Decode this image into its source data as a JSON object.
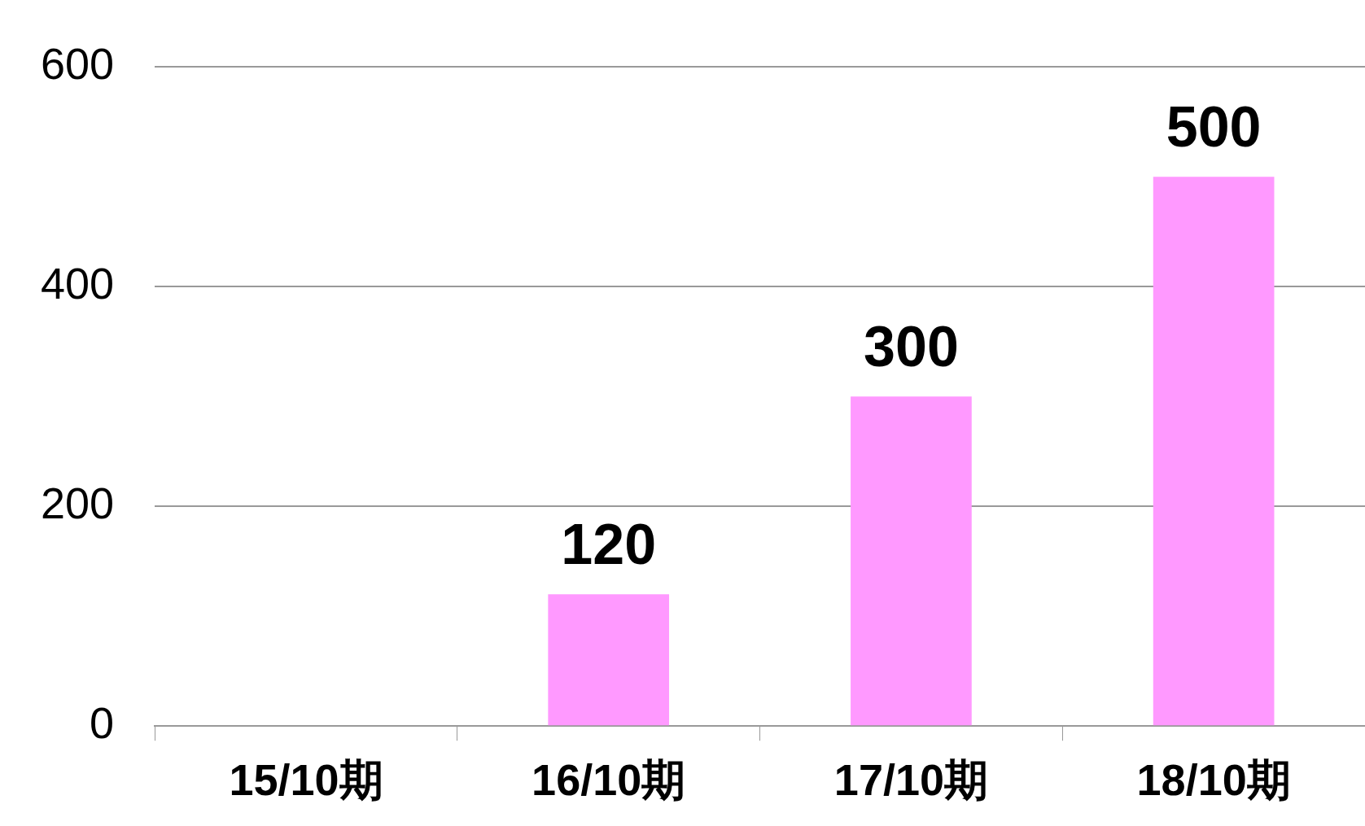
{
  "chart_data": {
    "type": "bar",
    "categories": [
      "15/10期",
      "16/10期",
      "17/10期",
      "18/10期"
    ],
    "values": [
      null,
      120,
      300,
      500
    ],
    "value_labels": [
      null,
      "120",
      "300",
      "500"
    ],
    "color": "#ff99ff",
    "ylim": [
      0,
      600
    ],
    "yticks": [
      0,
      200,
      400,
      600
    ],
    "grid": "y"
  }
}
